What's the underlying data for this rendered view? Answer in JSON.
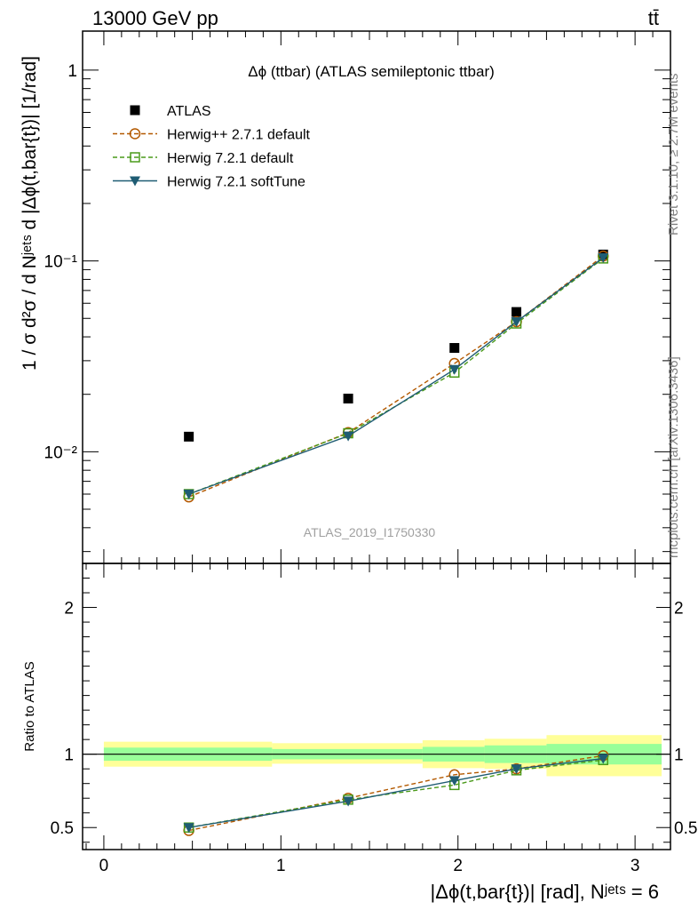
{
  "header": {
    "left": "13000 GeV pp",
    "right": "tt̄"
  },
  "side_labels": {
    "rivet": "Rivet 3.1.10, ≥ 2.7M events",
    "mcplots": "mcplots.cern.ch [arXiv:1306.3436]"
  },
  "watermark": "ATLAS_2019_I1750330",
  "chart_data": [
    {
      "type": "scatter",
      "panel": "main",
      "title": "Δϕ (ttbar) (ATLAS semileptonic ttbar)",
      "ylabel": "1 / σ d²σ / d Nʲᵉᵗˢ d |Δϕ(t,bar{t})| [1/rad]",
      "yscale": "log",
      "xlim": [
        -0.12,
        3.2
      ],
      "ylim": [
        0.0026,
        1.6
      ],
      "y_ticks": [
        {
          "value": 1,
          "label": "1"
        },
        {
          "value": 0.1,
          "label": "10⁻¹"
        },
        {
          "value": 0.01,
          "label": "10⁻²"
        }
      ],
      "legend_position": "top-left",
      "series": [
        {
          "name": "ATLAS",
          "marker": "square-filled",
          "color": "#000000",
          "line": "none",
          "x": [
            0.48,
            1.38,
            1.98,
            2.33,
            2.82
          ],
          "y": [
            0.012,
            0.019,
            0.035,
            0.054,
            0.108
          ]
        },
        {
          "name": "Herwig++ 2.7.1 default",
          "marker": "circle-open",
          "color": "#b35900",
          "line": "dashed",
          "x": [
            0.48,
            1.38,
            1.98,
            2.33,
            2.82
          ],
          "y": [
            0.0058,
            0.0126,
            0.029,
            0.048,
            0.106
          ]
        },
        {
          "name": "Herwig 7.2.1 default",
          "marker": "square-open",
          "color": "#4a9a1a",
          "line": "dashed",
          "x": [
            0.48,
            1.38,
            1.98,
            2.33,
            2.82
          ],
          "y": [
            0.006,
            0.0125,
            0.026,
            0.047,
            0.103
          ]
        },
        {
          "name": "Herwig 7.2.1 softTune",
          "marker": "triangle-down-filled",
          "color": "#1f5c73",
          "line": "solid",
          "x": [
            0.48,
            1.38,
            1.98,
            2.33,
            2.82
          ],
          "y": [
            0.006,
            0.0121,
            0.027,
            0.048,
            0.104
          ]
        }
      ]
    },
    {
      "type": "line",
      "panel": "ratio",
      "ylabel": "Ratio to ATLAS",
      "xlabel": "|Δϕ(t,bar{t})| [rad], Nʲᵉᵗˢ = 6",
      "xlim": [
        -0.12,
        3.2
      ],
      "ylim": [
        0.35,
        2.3
      ],
      "x_ticks": [
        0,
        1,
        2,
        3
      ],
      "y_ticks": [
        0.5,
        1,
        2
      ],
      "reference": 1,
      "bands": [
        {
          "x0": 0.0,
          "x1": 0.95,
          "yellow": [
            0.915,
            1.085
          ],
          "green": [
            0.955,
            1.045
          ]
        },
        {
          "x0": 0.95,
          "x1": 1.8,
          "yellow": [
            0.935,
            1.075
          ],
          "green": [
            0.965,
            1.035
          ]
        },
        {
          "x0": 1.8,
          "x1": 2.15,
          "yellow": [
            0.905,
            1.095
          ],
          "green": [
            0.95,
            1.05
          ]
        },
        {
          "x0": 2.15,
          "x1": 2.5,
          "yellow": [
            0.9,
            1.105
          ],
          "green": [
            0.94,
            1.06
          ]
        },
        {
          "x0": 2.5,
          "x1": 3.15,
          "yellow": [
            0.85,
            1.13
          ],
          "green": [
            0.93,
            1.07
          ]
        }
      ],
      "series": [
        {
          "name": "Herwig++ 2.7.1 default",
          "marker": "circle-open",
          "color": "#b35900",
          "line": "dashed",
          "x": [
            0.48,
            1.38,
            1.98,
            2.33,
            2.82
          ],
          "y": [
            0.48,
            0.7,
            0.86,
            0.9,
            0.99
          ]
        },
        {
          "name": "Herwig 7.2.1 default",
          "marker": "square-open",
          "color": "#4a9a1a",
          "line": "dashed",
          "x": [
            0.48,
            1.38,
            1.98,
            2.33,
            2.82
          ],
          "y": [
            0.5,
            0.69,
            0.79,
            0.89,
            0.96
          ]
        },
        {
          "name": "Herwig 7.2.1 softTune",
          "marker": "triangle-down-filled",
          "color": "#1f5c73",
          "line": "solid",
          "x": [
            0.48,
            1.38,
            1.98,
            2.33,
            2.82
          ],
          "y": [
            0.5,
            0.68,
            0.82,
            0.9,
            0.97
          ]
        }
      ]
    }
  ]
}
